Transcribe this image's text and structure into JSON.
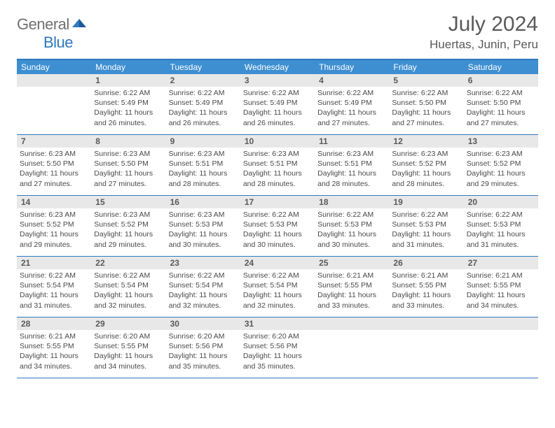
{
  "logo": {
    "text1": "General",
    "text2": "Blue"
  },
  "title": "July 2024",
  "location": "Huertas, Junin, Peru",
  "weekdays": [
    "Sunday",
    "Monday",
    "Tuesday",
    "Wednesday",
    "Thursday",
    "Friday",
    "Saturday"
  ],
  "colors": {
    "header_bar": "#3d8fd1",
    "rule": "#2f79bf",
    "daynum_bg": "#e8e8e8",
    "text": "#4a4a4a",
    "logo_gray": "#707070",
    "logo_blue": "#2f79bf"
  },
  "weeks": [
    [
      {
        "n": "",
        "sr": "",
        "ss": "",
        "dl": ""
      },
      {
        "n": "1",
        "sr": "6:22 AM",
        "ss": "5:49 PM",
        "dl": "11 hours and 26 minutes."
      },
      {
        "n": "2",
        "sr": "6:22 AM",
        "ss": "5:49 PM",
        "dl": "11 hours and 26 minutes."
      },
      {
        "n": "3",
        "sr": "6:22 AM",
        "ss": "5:49 PM",
        "dl": "11 hours and 26 minutes."
      },
      {
        "n": "4",
        "sr": "6:22 AM",
        "ss": "5:49 PM",
        "dl": "11 hours and 27 minutes."
      },
      {
        "n": "5",
        "sr": "6:22 AM",
        "ss": "5:50 PM",
        "dl": "11 hours and 27 minutes."
      },
      {
        "n": "6",
        "sr": "6:22 AM",
        "ss": "5:50 PM",
        "dl": "11 hours and 27 minutes."
      }
    ],
    [
      {
        "n": "7",
        "sr": "6:23 AM",
        "ss": "5:50 PM",
        "dl": "11 hours and 27 minutes."
      },
      {
        "n": "8",
        "sr": "6:23 AM",
        "ss": "5:50 PM",
        "dl": "11 hours and 27 minutes."
      },
      {
        "n": "9",
        "sr": "6:23 AM",
        "ss": "5:51 PM",
        "dl": "11 hours and 28 minutes."
      },
      {
        "n": "10",
        "sr": "6:23 AM",
        "ss": "5:51 PM",
        "dl": "11 hours and 28 minutes."
      },
      {
        "n": "11",
        "sr": "6:23 AM",
        "ss": "5:51 PM",
        "dl": "11 hours and 28 minutes."
      },
      {
        "n": "12",
        "sr": "6:23 AM",
        "ss": "5:52 PM",
        "dl": "11 hours and 28 minutes."
      },
      {
        "n": "13",
        "sr": "6:23 AM",
        "ss": "5:52 PM",
        "dl": "11 hours and 29 minutes."
      }
    ],
    [
      {
        "n": "14",
        "sr": "6:23 AM",
        "ss": "5:52 PM",
        "dl": "11 hours and 29 minutes."
      },
      {
        "n": "15",
        "sr": "6:23 AM",
        "ss": "5:52 PM",
        "dl": "11 hours and 29 minutes."
      },
      {
        "n": "16",
        "sr": "6:23 AM",
        "ss": "5:53 PM",
        "dl": "11 hours and 30 minutes."
      },
      {
        "n": "17",
        "sr": "6:22 AM",
        "ss": "5:53 PM",
        "dl": "11 hours and 30 minutes."
      },
      {
        "n": "18",
        "sr": "6:22 AM",
        "ss": "5:53 PM",
        "dl": "11 hours and 30 minutes."
      },
      {
        "n": "19",
        "sr": "6:22 AM",
        "ss": "5:53 PM",
        "dl": "11 hours and 31 minutes."
      },
      {
        "n": "20",
        "sr": "6:22 AM",
        "ss": "5:53 PM",
        "dl": "11 hours and 31 minutes."
      }
    ],
    [
      {
        "n": "21",
        "sr": "6:22 AM",
        "ss": "5:54 PM",
        "dl": "11 hours and 31 minutes."
      },
      {
        "n": "22",
        "sr": "6:22 AM",
        "ss": "5:54 PM",
        "dl": "11 hours and 32 minutes."
      },
      {
        "n": "23",
        "sr": "6:22 AM",
        "ss": "5:54 PM",
        "dl": "11 hours and 32 minutes."
      },
      {
        "n": "24",
        "sr": "6:22 AM",
        "ss": "5:54 PM",
        "dl": "11 hours and 32 minutes."
      },
      {
        "n": "25",
        "sr": "6:21 AM",
        "ss": "5:55 PM",
        "dl": "11 hours and 33 minutes."
      },
      {
        "n": "26",
        "sr": "6:21 AM",
        "ss": "5:55 PM",
        "dl": "11 hours and 33 minutes."
      },
      {
        "n": "27",
        "sr": "6:21 AM",
        "ss": "5:55 PM",
        "dl": "11 hours and 34 minutes."
      }
    ],
    [
      {
        "n": "28",
        "sr": "6:21 AM",
        "ss": "5:55 PM",
        "dl": "11 hours and 34 minutes."
      },
      {
        "n": "29",
        "sr": "6:20 AM",
        "ss": "5:55 PM",
        "dl": "11 hours and 34 minutes."
      },
      {
        "n": "30",
        "sr": "6:20 AM",
        "ss": "5:56 PM",
        "dl": "11 hours and 35 minutes."
      },
      {
        "n": "31",
        "sr": "6:20 AM",
        "ss": "5:56 PM",
        "dl": "11 hours and 35 minutes."
      },
      {
        "n": "",
        "sr": "",
        "ss": "",
        "dl": ""
      },
      {
        "n": "",
        "sr": "",
        "ss": "",
        "dl": ""
      },
      {
        "n": "",
        "sr": "",
        "ss": "",
        "dl": ""
      }
    ]
  ],
  "labels": {
    "sunrise": "Sunrise: ",
    "sunset": "Sunset: ",
    "daylight": "Daylight: "
  }
}
